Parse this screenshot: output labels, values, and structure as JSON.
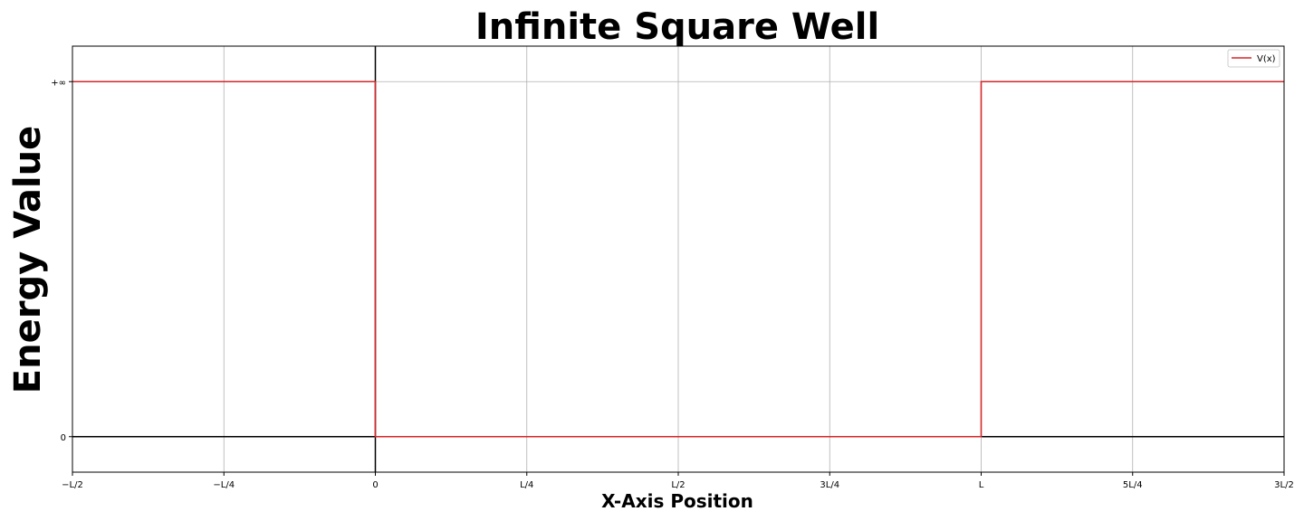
{
  "chart_data": {
    "type": "line",
    "title": "Infinite Square Well",
    "xlabel": "X-Axis Position",
    "ylabel": "Energy Value",
    "xlim": [
      -0.5,
      1.5
    ],
    "ylim": [
      -0.1,
      1.1
    ],
    "grid": true,
    "legend_position": "top-right",
    "x_ticks": [
      {
        "value": -0.5,
        "label": "−L/2"
      },
      {
        "value": -0.25,
        "label": "−L/4"
      },
      {
        "value": 0,
        "label": "0"
      },
      {
        "value": 0.25,
        "label": "L/4"
      },
      {
        "value": 0.5,
        "label": "L/2"
      },
      {
        "value": 0.75,
        "label": "3L/4"
      },
      {
        "value": 1,
        "label": "L"
      },
      {
        "value": 1.25,
        "label": "5L/4"
      },
      {
        "value": 1.5,
        "label": "3L/2"
      }
    ],
    "y_ticks": [
      {
        "value": 0,
        "label": "0"
      },
      {
        "value": 1,
        "label": "+∞"
      }
    ],
    "series": [
      {
        "name": "V(x)",
        "color": "#d62728",
        "x": [
          -0.5,
          0,
          0,
          1,
          1,
          1.5
        ],
        "y": [
          1,
          1,
          0,
          0,
          1,
          1
        ]
      }
    ],
    "reference_lines": {
      "horizontal_at": 0,
      "vertical_at": 0,
      "color": "#000000"
    }
  }
}
